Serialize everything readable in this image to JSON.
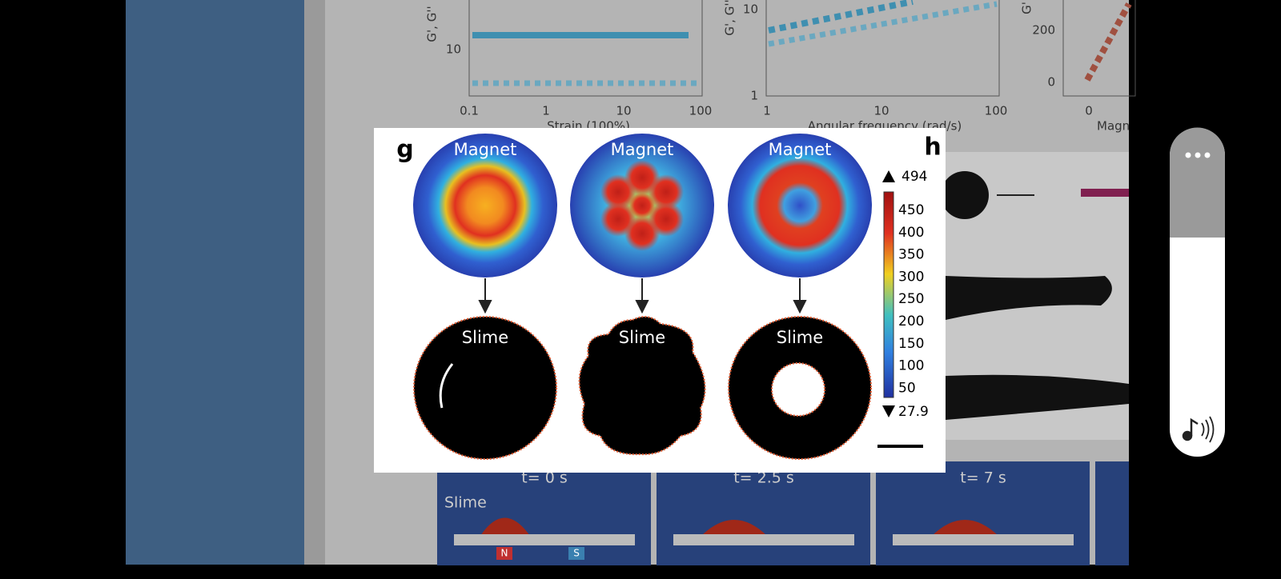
{
  "background_figure": {
    "top_panels": [
      {
        "y_axis_label": "G', G''",
        "y_ticks": [
          "10"
        ],
        "x_ticks": [
          "0.1",
          "1",
          "10",
          "100"
        ],
        "x_axis_label": "Strain (100%)"
      },
      {
        "y_axis_label": "G', G''",
        "y_ticks": [
          "10",
          "1"
        ],
        "x_ticks": [
          "1",
          "10",
          "100"
        ],
        "x_axis_label": "Angular frequency (rad/s)"
      },
      {
        "y_axis_label": "G'",
        "y_ticks": [
          "200",
          "0"
        ],
        "x_ticks": [
          "0"
        ],
        "x_axis_label": "Magn"
      }
    ],
    "bottom_panel": {
      "slime_label": "Slime",
      "frames": [
        "t= 0 s",
        "t= 2.5 s",
        "t= 7 s"
      ],
      "poles": [
        "N",
        "S"
      ]
    }
  },
  "figure_popup": {
    "panel_labels": [
      "g",
      "h"
    ],
    "simulations": [
      "Magnet",
      "Magnet",
      "Magnet"
    ],
    "results": [
      "Slime",
      "Slime",
      "Slime"
    ],
    "colorbar": {
      "max": "494",
      "ticks": [
        "450",
        "400",
        "350",
        "300",
        "250",
        "200",
        "150",
        "100",
        "50"
      ],
      "min": "27.9"
    }
  }
}
